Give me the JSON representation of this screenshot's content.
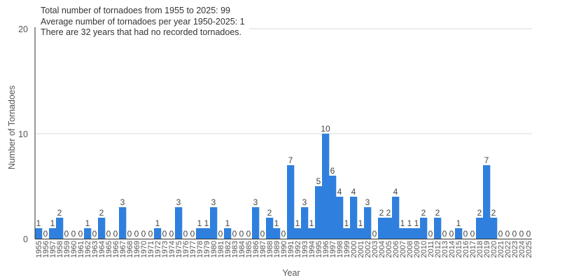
{
  "chart_data": {
    "type": "bar",
    "title": "",
    "xlabel": "Year",
    "ylabel": "Number of Tornadoes",
    "ylim": [
      0,
      20
    ],
    "yticks": [
      0,
      10,
      20
    ],
    "grid": true,
    "legend": "none",
    "bar_color": "#2f80de",
    "categories": [
      "1955",
      "1956",
      "1957",
      "1958",
      "1959",
      "1960",
      "1961",
      "1962",
      "1963",
      "1964",
      "1965",
      "1966",
      "1967",
      "1968",
      "1969",
      "1970",
      "1971",
      "1972",
      "1973",
      "1974",
      "1975",
      "1976",
      "1977",
      "1978",
      "1979",
      "1980",
      "1981",
      "1982",
      "1983",
      "1984",
      "1985",
      "1986",
      "1987",
      "1988",
      "1989",
      "1990",
      "1991",
      "1992",
      "1993",
      "1994",
      "1995",
      "1996",
      "1997",
      "1998",
      "1999",
      "2000",
      "2001",
      "2002",
      "2003",
      "2004",
      "2005",
      "2006",
      "2007",
      "2008",
      "2009",
      "2010",
      "2011",
      "2012",
      "2013",
      "2014",
      "2015",
      "2016",
      "2017",
      "2018",
      "2019",
      "2020",
      "2021",
      "2022",
      "2023",
      "2024",
      "2025"
    ],
    "values": [
      1,
      0,
      1,
      2,
      0,
      0,
      0,
      1,
      0,
      2,
      0,
      0,
      3,
      0,
      0,
      0,
      0,
      1,
      0,
      0,
      3,
      0,
      0,
      1,
      1,
      3,
      0,
      1,
      0,
      0,
      0,
      3,
      0,
      2,
      1,
      0,
      7,
      1,
      3,
      1,
      5,
      10,
      6,
      4,
      1,
      4,
      1,
      3,
      0,
      2,
      2,
      4,
      1,
      1,
      1,
      2,
      0,
      2,
      0,
      0,
      1,
      0,
      0,
      2,
      7,
      2,
      0,
      0,
      0,
      0,
      0
    ],
    "annotations": [
      "Total number of tornadoes from 1955 to 2025: 99",
      "Average number of tornadoes per year 1950-2025: 1",
      "There are 32 years that had no recorded tornadoes."
    ]
  }
}
